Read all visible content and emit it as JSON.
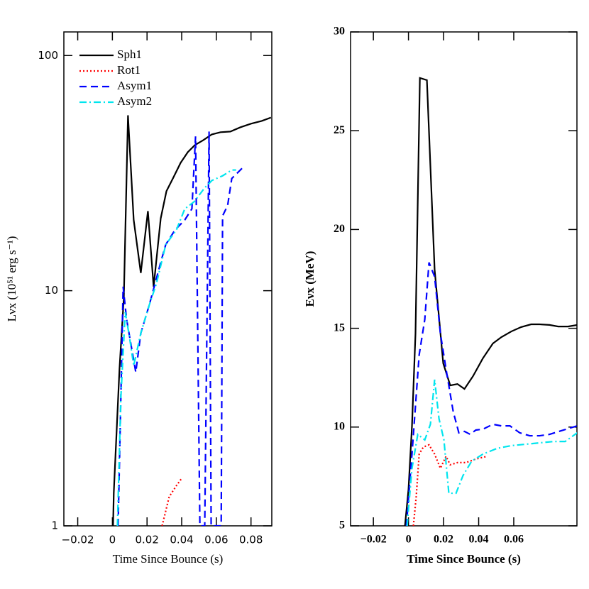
{
  "chart_data": [
    {
      "type": "line",
      "x_label": "Time Since Bounce (s)",
      "y_label": "Lνx (10⁵¹ erg s⁻¹)",
      "xlim": [
        -0.028,
        0.092
      ],
      "xticks": [
        -0.02,
        0,
        0.02,
        0.04,
        0.06,
        0.08
      ],
      "ylim": [
        1,
        126
      ],
      "yticks": [
        1,
        10,
        100
      ],
      "log_y": true,
      "legend": "upper left",
      "series": [
        {
          "name": "Sph1",
          "color": "#000000",
          "style": "solid",
          "x": [
            0.0004,
            0.0008,
            0.0041,
            0.0066,
            0.009,
            0.0123,
            0.0164,
            0.0205,
            0.0238,
            0.0279,
            0.0312,
            0.0353,
            0.0394,
            0.0435,
            0.0476,
            0.0525,
            0.0574,
            0.0624,
            0.0681,
            0.0738,
            0.08,
            0.0862,
            0.0915
          ],
          "values": [
            1,
            1.38,
            4.65,
            9.3,
            55.7,
            20,
            11.9,
            21.8,
            10.4,
            20.3,
            26.5,
            30.4,
            35,
            38.8,
            41.6,
            43.7,
            46.2,
            47.2,
            47.5,
            49.5,
            51.3,
            52.7,
            54.5
          ]
        },
        {
          "name": "Rot1",
          "color": "#ff0000",
          "style": "dotted",
          "x": [
            0.0287,
            0.0328,
            0.0369,
            0.0402
          ],
          "values": [
            1,
            1.33,
            1.48,
            1.6
          ]
        },
        {
          "name": "Asym1",
          "color": "#0000ff",
          "style": "dashed",
          "x": [
            0.0033,
            0.0049,
            0.0062,
            0.0082,
            0.0135,
            0.0164,
            0.0213,
            0.0246,
            0.0279,
            0.0308,
            0.0361,
            0.0418,
            0.0459,
            0.048,
            0.0505,
            0.0533,
            0.0558,
            0.057,
            0.0628,
            0.0636,
            0.0665,
            0.0689,
            0.0751
          ],
          "values": [
            1,
            3.52,
            10.4,
            7.57,
            4.5,
            6.59,
            8.7,
            10.7,
            13.2,
            15.7,
            18.1,
            20,
            22.3,
            45.3,
            1,
            1,
            47.5,
            1,
            1,
            20.8,
            23,
            30,
            33.3
          ]
        },
        {
          "name": "Asym2",
          "color": "#00e5ee",
          "style": "dashdot",
          "x": [
            0.0029,
            0.0049,
            0.0074,
            0.0098,
            0.0123,
            0.0164,
            0.0213,
            0.0254,
            0.0308,
            0.0369,
            0.0418,
            0.0472,
            0.0533,
            0.0574,
            0.0636,
            0.0689,
            0.0714
          ],
          "values": [
            1,
            3.52,
            8.1,
            6.4,
            4.8,
            6.59,
            8.7,
            10.7,
            15.7,
            18.1,
            22.3,
            23.9,
            27.4,
            29.4,
            30.8,
            32.6,
            32.6
          ]
        }
      ]
    },
    {
      "type": "line",
      "x_label": "Time Since Bounce (s)",
      "y_label": "Eνx (MeV)",
      "xlim": [
        -0.033,
        0.096
      ],
      "xticks": [
        -0.02,
        0,
        0.02,
        0.04,
        0.06
      ],
      "ylim": [
        5,
        30
      ],
      "yticks": [
        5,
        10,
        15,
        20,
        25,
        30
      ],
      "log_y": false,
      "series": [
        {
          "color": "#000000",
          "style": "solid",
          "x": [
            -0.002,
            0,
            0.002,
            0.004,
            0.0065,
            0.0105,
            0.0149,
            0.0198,
            0.0238,
            0.0279,
            0.0319,
            0.0368,
            0.0424,
            0.0481,
            0.0529,
            0.0586,
            0.0642,
            0.0699,
            0.0747,
            0.0804,
            0.0853,
            0.0909,
            0.0962
          ],
          "values": [
            5,
            6.83,
            10.06,
            14.73,
            27.67,
            27.56,
            17.97,
            13.23,
            12.11,
            12.18,
            11.93,
            12.58,
            13.48,
            14.23,
            14.55,
            14.84,
            15.06,
            15.2,
            15.2,
            15.17,
            15.09,
            15.09,
            15.17
          ]
        },
        {
          "color": "#ff0000",
          "style": "dotted",
          "x": [
            0.0028,
            0.0044,
            0.0061,
            0.0085,
            0.0117,
            0.0149,
            0.0182,
            0.0214,
            0.0238,
            0.0279,
            0.0327,
            0.0384,
            0.0448
          ],
          "values": [
            5,
            6.47,
            8.63,
            8.99,
            9.1,
            8.63,
            7.91,
            8.52,
            8.09,
            8.2,
            8.2,
            8.38,
            8.52
          ]
        },
        {
          "color": "#0000ff",
          "style": "dashed",
          "x": [
            -0.0012,
            0.002,
            0.0061,
            0.0093,
            0.0117,
            0.0149,
            0.0182,
            0.0214,
            0.0255,
            0.0287,
            0.0319,
            0.0352,
            0.0384,
            0.0424,
            0.0481,
            0.0529,
            0.0578,
            0.0634,
            0.0691,
            0.0747,
            0.0804,
            0.0869,
            0.0962
          ],
          "values": [
            5,
            8.63,
            13.66,
            15.45,
            18.33,
            17.61,
            14.73,
            12.94,
            10.78,
            9.71,
            9.78,
            9.63,
            9.85,
            9.89,
            10.14,
            10.06,
            10.06,
            9.71,
            9.56,
            9.56,
            9.63,
            9.81,
            10.06
          ]
        },
        {
          "color": "#00e5ee",
          "style": "dashdot",
          "x": [
            -0.0008,
            0.002,
            0.0053,
            0.0093,
            0.0125,
            0.0149,
            0.0174,
            0.0202,
            0.023,
            0.0271,
            0.0311,
            0.036,
            0.0424,
            0.0505,
            0.0586,
            0.0667,
            0.0747,
            0.0828,
            0.0893,
            0.0962
          ],
          "values": [
            5,
            7.91,
            9.63,
            9.35,
            10.14,
            12.4,
            10.42,
            9.35,
            6.65,
            6.65,
            7.55,
            8.27,
            8.63,
            8.92,
            9.06,
            9.13,
            9.2,
            9.27,
            9.27,
            9.71
          ]
        }
      ]
    }
  ]
}
